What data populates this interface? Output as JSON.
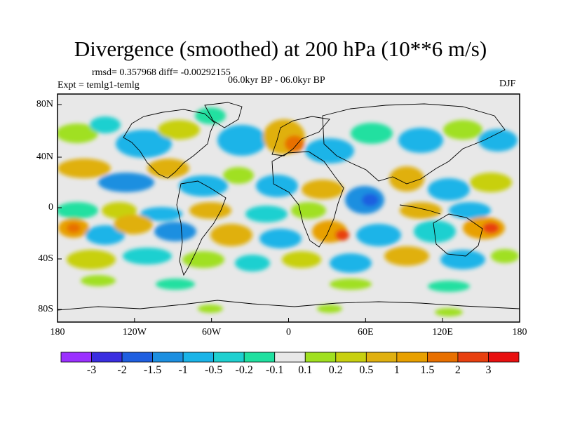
{
  "title": "Divergence (smoothed) at 200 hPa (10**6 m/s)",
  "rmsd_line": "rmsd= 0.357968 diff= -0.00292155",
  "expt": "Expt = temlg1-temlg",
  "period": "06.0kyr BP - 06.0kyr BP",
  "season": "DJF",
  "map": {
    "lon_ticks": [
      "180",
      "120W",
      "60W",
      "0",
      "60E",
      "120E",
      "180"
    ],
    "lat_ticks": [
      "80N",
      "40N",
      "0",
      "40S",
      "80S"
    ],
    "background_color": "#e8e8e8"
  },
  "colorbar": {
    "colors": [
      "#9b30ff",
      "#3a2ee0",
      "#1f5fe0",
      "#1d8fe0",
      "#1ab4e8",
      "#1fd0d0",
      "#20e0a0",
      "#e8e8e8",
      "#a0e020",
      "#c8d010",
      "#e0b010",
      "#e8a000",
      "#e87000",
      "#e84010",
      "#e81010"
    ],
    "labels": [
      "-3",
      "-2",
      "-1.5",
      "-1",
      "-0.5",
      "-0.2",
      "-0.1",
      "0.1",
      "0.2",
      "0.5",
      "1",
      "1.5",
      "2",
      "3"
    ]
  }
}
